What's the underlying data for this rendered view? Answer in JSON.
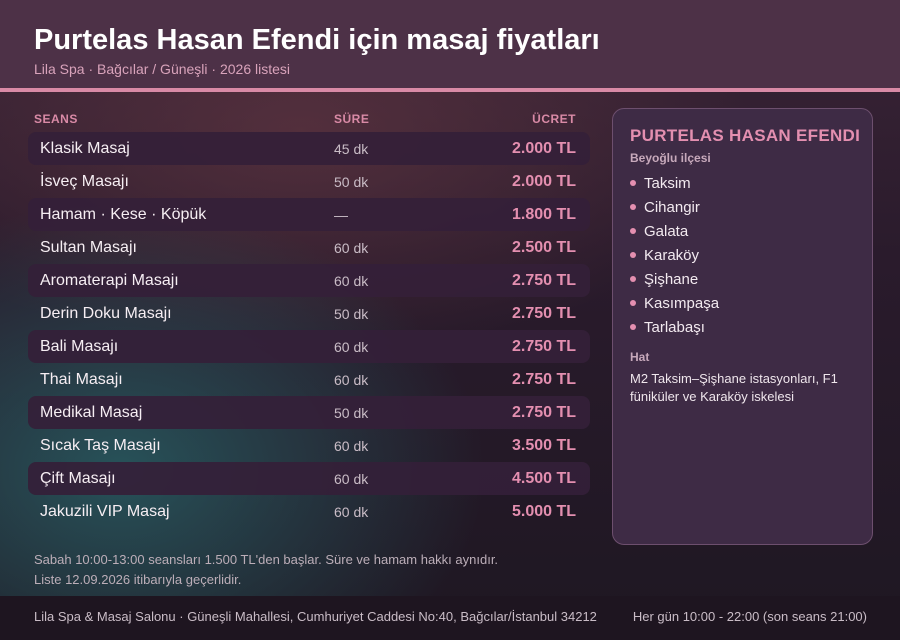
{
  "header": {
    "title": "Purtelas Hasan Efendi için masaj fiyatları",
    "subtitle": "Lila Spa · Bağcılar / Güneşli · 2026 listesi"
  },
  "table": {
    "columns": {
      "service": "SEANS",
      "duration": "SÜRE",
      "price": "ÜCRET"
    },
    "rows": [
      {
        "name": "Klasik Masaj",
        "duration": "45 dk",
        "price": "2.000 TL"
      },
      {
        "name": "İsveç Masajı",
        "duration": "50 dk",
        "price": "2.000 TL"
      },
      {
        "name": "Hamam · Kese · Köpük",
        "duration": "—",
        "price": "1.800 TL"
      },
      {
        "name": "Sultan Masajı",
        "duration": "60 dk",
        "price": "2.500 TL"
      },
      {
        "name": "Aromaterapi Masajı",
        "duration": "60 dk",
        "price": "2.750 TL"
      },
      {
        "name": "Derin Doku Masajı",
        "duration": "50 dk",
        "price": "2.750 TL"
      },
      {
        "name": "Bali Masajı",
        "duration": "60 dk",
        "price": "2.750 TL"
      },
      {
        "name": "Thai Masajı",
        "duration": "60 dk",
        "price": "2.750 TL"
      },
      {
        "name": "Medikal Masaj",
        "duration": "50 dk",
        "price": "2.750 TL"
      },
      {
        "name": "Sıcak Taş Masajı",
        "duration": "60 dk",
        "price": "3.500 TL"
      },
      {
        "name": "Çift Masajı",
        "duration": "60 dk",
        "price": "4.500 TL"
      },
      {
        "name": "Jakuzili VIP Masaj",
        "duration": "60 dk",
        "price": "5.000 TL"
      }
    ]
  },
  "notes": {
    "line1": "Sabah 10:00-13:00 seansları 1.500 TL'den başlar. Süre ve hamam hakkı aynıdır.",
    "line2": "Liste 12.09.2026 itibarıyla geçerlidir."
  },
  "sidebar": {
    "title": "PURTELAS HASAN EFENDI",
    "district": "Beyoğlu ilçesi",
    "neighborhoods": [
      "Taksim",
      "Cihangir",
      "Galata",
      "Karaköy",
      "Şişhane",
      "Kasımpaşa",
      "Tarlabaşı"
    ],
    "transit_label": "Hat",
    "transit_text": "M2 Taksim–Şişhane istasyonları, F1 füniküler ve Karaköy iskelesi"
  },
  "footer": {
    "address": "Lila Spa & Masaj Salonu · Güneşli Mahallesi, Cumhuriyet Caddesi No:40, Bağcılar/İstanbul 34212",
    "hours": "Her gün 10:00 - 22:00 (son seans 21:00)"
  },
  "colors": {
    "accent": "#e48fb0",
    "header_bg": "#4d3147",
    "header_rule": "#d98aa6"
  }
}
